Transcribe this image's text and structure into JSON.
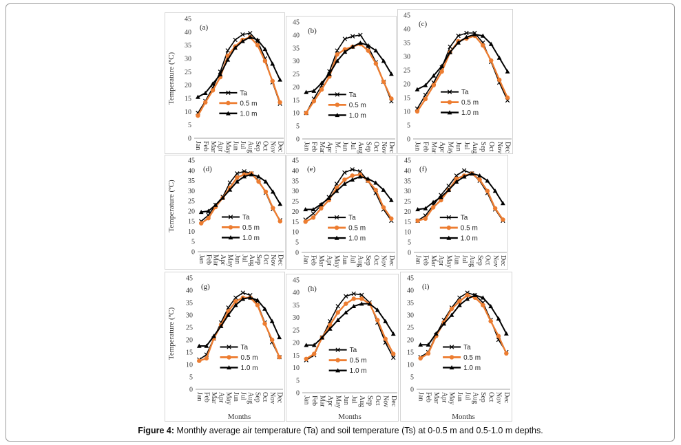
{
  "caption": {
    "label": "Figure 4:",
    "text": "Monthly average air temperature (Ta) and soil temperature (Ts) at 0-0.5 m and 0.5-1.0 m depths."
  },
  "colors": {
    "ta": "#000000",
    "d05": "#ED7D31",
    "d10": "#000000"
  },
  "chart_data": [
    {
      "type": "line",
      "panel_label": "(a)",
      "ylabel": "Temperature (ºC)",
      "xlabel": "",
      "ylim": [
        0,
        45
      ],
      "yticks": [
        0,
        5,
        10,
        15,
        20,
        25,
        30,
        35,
        40,
        45
      ],
      "categories": [
        "Jan",
        "Feb",
        "Mar",
        "Apr",
        "May",
        "Jun",
        "Jul",
        "Aug",
        "Sep",
        "Oct",
        "Nov",
        "Dec"
      ],
      "legend_position": "center-left",
      "series": [
        {
          "name": "Ta",
          "marker": "x",
          "values": [
            9.5,
            14,
            19,
            25,
            33,
            37,
            39,
            39.5,
            36.5,
            30,
            21,
            13
          ]
        },
        {
          "name": "0.5 m",
          "marker": "circle",
          "values": [
            8.5,
            13.5,
            18,
            23,
            31,
            34.5,
            37,
            38,
            35,
            29,
            21.5,
            13.5
          ]
        },
        {
          "name": "1.0 m",
          "marker": "triangle",
          "values": [
            15.5,
            17,
            20.5,
            24,
            29.5,
            34,
            36.5,
            38,
            37,
            33.5,
            28,
            22
          ]
        }
      ]
    },
    {
      "type": "line",
      "panel_label": "(b)",
      "ylabel": "",
      "xlabel": "",
      "ylim": [
        0,
        45
      ],
      "yticks": [
        0,
        5,
        10,
        15,
        20,
        25,
        30,
        35,
        40,
        45
      ],
      "categories": [
        "Jan",
        "Feb",
        "Mar",
        "Apr",
        "May",
        "Jun",
        "Jul",
        "Aug",
        "Sep",
        "Oct",
        "Nov",
        "Dec"
      ],
      "tick_categories": [
        "Jan",
        "Feb",
        "Mar",
        "Apr",
        "M...",
        "Jun",
        "Jul",
        "Aug",
        "Sep",
        "Oct",
        "Nov",
        "Dec"
      ],
      "legend_position": "center-left",
      "series": [
        {
          "name": "Ta",
          "marker": "x",
          "values": [
            10,
            15.5,
            20.5,
            26,
            34,
            38.5,
            39.5,
            40,
            35.5,
            29.5,
            22,
            14.5
          ]
        },
        {
          "name": "0.5 m",
          "marker": "circle",
          "values": [
            10,
            14.5,
            19,
            24,
            32.5,
            34.5,
            35.5,
            36.5,
            34,
            29,
            22,
            15.5
          ]
        },
        {
          "name": "1.0 m",
          "marker": "triangle",
          "values": [
            18,
            18.5,
            21.5,
            25,
            30,
            33.5,
            35.5,
            37,
            36,
            34,
            30,
            25
          ]
        }
      ]
    },
    {
      "type": "line",
      "panel_label": "(c)",
      "ylabel": "",
      "xlabel": "",
      "ylim": [
        0,
        45
      ],
      "yticks": [
        0,
        5,
        10,
        15,
        20,
        25,
        30,
        35,
        40,
        45
      ],
      "categories": [
        "Jan",
        "Feb",
        "Mar",
        "Apr",
        "May",
        "Jun",
        "Jul",
        "Aug",
        "Sep",
        "Oct",
        "Nov",
        "Dec"
      ],
      "legend_position": "center-left",
      "series": [
        {
          "name": "Ta",
          "marker": "x",
          "values": [
            11,
            16,
            20.5,
            26,
            33.5,
            37.5,
            38.5,
            38.5,
            35,
            28,
            20.5,
            14
          ]
        },
        {
          "name": "0.5 m",
          "marker": "circle",
          "values": [
            10,
            14.5,
            19.5,
            24.5,
            31.5,
            35.5,
            36.5,
            37.5,
            34,
            28.5,
            21.5,
            15
          ]
        },
        {
          "name": "1.0 m",
          "marker": "triangle",
          "values": [
            18,
            19.5,
            23,
            26.5,
            31.5,
            35,
            37,
            38,
            37.5,
            34.5,
            29.5,
            24.5
          ]
        }
      ]
    },
    {
      "type": "line",
      "panel_label": "(d)",
      "ylabel": "Temperature (ºC)",
      "xlabel": "",
      "ylim": [
        0,
        45
      ],
      "yticks": [
        0,
        5,
        10,
        15,
        20,
        25,
        30,
        35,
        40,
        45
      ],
      "categories": [
        "Jan",
        "Feb",
        "Mar",
        "Apr",
        "May",
        "Jun",
        "Jul",
        "Aug",
        "Sep",
        "Oct",
        "Nov",
        "Dec"
      ],
      "legend_position": "center-left",
      "series": [
        {
          "name": "Ta",
          "marker": "x",
          "values": [
            15,
            18,
            23,
            27,
            34,
            38.5,
            39.5,
            38.5,
            35,
            29,
            21,
            15.5
          ]
        },
        {
          "name": "0.5 m",
          "marker": "circle",
          "values": [
            14,
            16.5,
            22,
            26.5,
            31.5,
            36.5,
            38,
            38.5,
            34.5,
            29.5,
            21.5,
            15
          ]
        },
        {
          "name": "1.0 m",
          "marker": "triangle",
          "values": [
            19.5,
            20,
            23,
            26.5,
            30.5,
            34.5,
            37,
            38,
            37,
            34.5,
            29.5,
            23.5
          ]
        }
      ]
    },
    {
      "type": "line",
      "panel_label": "(e)",
      "ylabel": "",
      "xlabel": "",
      "ylim": [
        0,
        45
      ],
      "yticks": [
        0,
        5,
        10,
        15,
        20,
        25,
        30,
        35,
        40,
        45
      ],
      "categories": [
        "Jan",
        "Feb",
        "Mar",
        "Apr",
        "May",
        "Jun",
        "Jul",
        "Aug",
        "Sep",
        "Oct",
        "Nov",
        "Dec"
      ],
      "legend_position": "center-left",
      "series": [
        {
          "name": "Ta",
          "marker": "x",
          "values": [
            16,
            19,
            23,
            27,
            33.5,
            39,
            40.5,
            39.5,
            35,
            29,
            21,
            15.5
          ]
        },
        {
          "name": "0.5 m",
          "marker": "circle",
          "values": [
            15,
            17,
            21.5,
            25.5,
            31.5,
            35.5,
            37.5,
            38,
            35,
            30.5,
            22,
            16.5
          ]
        },
        {
          "name": "1.0 m",
          "marker": "triangle",
          "values": [
            21,
            21,
            23.5,
            26.5,
            30,
            33.5,
            35.5,
            37,
            36,
            34,
            30.5,
            25.5
          ]
        }
      ]
    },
    {
      "type": "line",
      "panel_label": "(f)",
      "ylabel": "",
      "xlabel": "",
      "ylim": [
        0,
        45
      ],
      "yticks": [
        0,
        5,
        10,
        15,
        20,
        25,
        30,
        35,
        40,
        45
      ],
      "categories": [
        "Jan",
        "Feb",
        "Mar",
        "Apr",
        "May",
        "Jun",
        "Jul",
        "Aug",
        "Sep",
        "Oct",
        "Nov",
        "Dec"
      ],
      "legend_position": "center-left",
      "series": [
        {
          "name": "Ta",
          "marker": "x",
          "values": [
            15.5,
            18,
            23,
            28,
            32.5,
            37.5,
            40,
            38.5,
            35,
            29,
            21,
            15.5
          ]
        },
        {
          "name": "0.5 m",
          "marker": "circle",
          "values": [
            15.5,
            16.5,
            22,
            25.5,
            30.5,
            36,
            37.5,
            38.5,
            35.5,
            30,
            21.5,
            16
          ]
        },
        {
          "name": "1.0 m",
          "marker": "triangle",
          "values": [
            21,
            21.5,
            24.5,
            27,
            30.5,
            34.5,
            37,
            38.5,
            37.5,
            35,
            30,
            24
          ]
        }
      ]
    },
    {
      "type": "line",
      "panel_label": "(g)",
      "ylabel": "Temperature (ºC)",
      "xlabel": "Months",
      "ylim": [
        0,
        45
      ],
      "yticks": [
        0,
        5,
        10,
        15,
        20,
        25,
        30,
        35,
        40,
        45
      ],
      "categories": [
        "Jan",
        "Feb",
        "Mar",
        "Apr",
        "May",
        "Jun",
        "Jul",
        "Aug",
        "Sep",
        "Oct",
        "Nov",
        "Dec"
      ],
      "legend_position": "center-left",
      "series": [
        {
          "name": "Ta",
          "marker": "x",
          "values": [
            12,
            14,
            20.5,
            27,
            33,
            37,
            39,
            38,
            34.5,
            27,
            19,
            13
          ]
        },
        {
          "name": "0.5 m",
          "marker": "circle",
          "values": [
            11.5,
            12.5,
            20.5,
            26,
            31.5,
            35.5,
            37,
            37,
            34,
            26.5,
            20,
            13
          ]
        },
        {
          "name": "1.0 m",
          "marker": "triangle",
          "values": [
            17.5,
            17.5,
            21.5,
            25.5,
            30,
            34,
            36.5,
            37,
            36,
            32.5,
            27.5,
            21
          ]
        }
      ]
    },
    {
      "type": "line",
      "panel_label": "(h)",
      "ylabel": "",
      "xlabel": "Months",
      "ylim": [
        0,
        45
      ],
      "yticks": [
        0,
        5,
        10,
        15,
        20,
        25,
        30,
        35,
        40,
        45
      ],
      "categories": [
        "Jan",
        "Feb",
        "Mar",
        "Apr",
        "May",
        "Jun",
        "Jul",
        "Aug",
        "Sep",
        "Oct",
        "Nov",
        "Dec"
      ],
      "legend_position": "center-left",
      "series": [
        {
          "name": "Ta",
          "marker": "x",
          "values": [
            13,
            15,
            22,
            28.5,
            34.5,
            38.5,
            39.5,
            39,
            36,
            28,
            20,
            14
          ]
        },
        {
          "name": "0.5 m",
          "marker": "circle",
          "values": [
            13.5,
            15.5,
            22,
            27,
            32,
            35.5,
            37.5,
            37.5,
            35.5,
            29,
            21.5,
            15.5
          ]
        },
        {
          "name": "1.0 m",
          "marker": "triangle",
          "values": [
            19,
            19,
            22,
            25.5,
            29,
            32,
            34.5,
            35.5,
            35.5,
            33,
            28.5,
            23.5
          ]
        }
      ]
    },
    {
      "type": "line",
      "panel_label": "(i)",
      "ylabel": "",
      "xlabel": "Months",
      "ylim": [
        0,
        45
      ],
      "yticks": [
        0,
        5,
        10,
        15,
        20,
        25,
        30,
        35,
        40,
        45
      ],
      "categories": [
        "Jan",
        "Feb",
        "Mar",
        "Apr",
        "May",
        "Jun",
        "Jul",
        "Aug",
        "Sep",
        "Oct",
        "Nov",
        "Dec"
      ],
      "legend_position": "center-left",
      "series": [
        {
          "name": "Ta",
          "marker": "x",
          "values": [
            13,
            15,
            22,
            28,
            33,
            37,
            39,
            38,
            35,
            28,
            20,
            15
          ]
        },
        {
          "name": "0.5 m",
          "marker": "circle",
          "values": [
            12.5,
            14.5,
            21.5,
            27,
            32.5,
            35.5,
            38,
            37,
            34,
            27.5,
            21.5,
            14.5
          ]
        },
        {
          "name": "1.0 m",
          "marker": "triangle",
          "values": [
            18,
            18,
            22.5,
            26.5,
            30,
            34,
            36.5,
            38,
            37,
            33.5,
            28.5,
            22.5
          ]
        }
      ]
    }
  ]
}
